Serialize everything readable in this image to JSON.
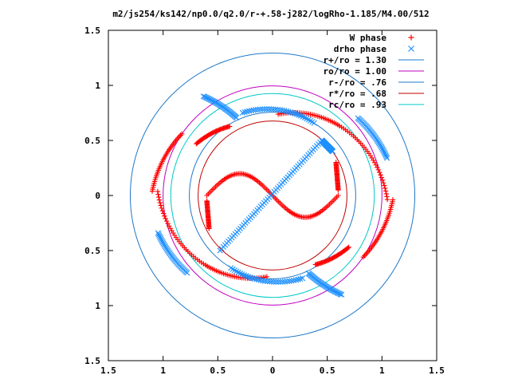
{
  "chart_data": {
    "type": "scatter",
    "title": "m2/js254/ks142/np0.0/q2.0/r-+.58-j282/logRho-1.185/M4.00/512",
    "xlabel": "",
    "ylabel": "",
    "xlim": [
      -1.5,
      1.5
    ],
    "ylim": [
      -1.5,
      1.5
    ],
    "x_ticks": [
      -1.5,
      -1,
      -0.5,
      0,
      0.5,
      1,
      1.5
    ],
    "x_tick_labels": [
      "1.5",
      "1",
      "0.5",
      "0",
      "0.5",
      "1",
      "1.5"
    ],
    "y_ticks": [
      1.5,
      1,
      0.5,
      0,
      -0.5,
      -1,
      -1.5
    ],
    "y_tick_labels": [
      "1.5",
      "1",
      "0.5",
      "0",
      "0.5",
      "1",
      "1.5"
    ],
    "grid": false,
    "legend_position": "top-right",
    "series": [
      {
        "name": "W phase",
        "kind": "points",
        "marker": "plus",
        "color": "#ff0000",
        "arcs": [
          {
            "r0": 0.74,
            "r1": 0.84,
            "a0": 122,
            "a1": 146
          },
          {
            "r0": 1.0,
            "r1": 1.1,
            "a0": 146,
            "a1": 178
          },
          {
            "r0": 1.05,
            "r1": 0.88,
            "a0": 178,
            "a1": 226
          },
          {
            "r0": 0.88,
            "r1": 0.74,
            "a0": 226,
            "a1": 266
          },
          {
            "r0": 0.74,
            "r1": 0.84,
            "a0": 302,
            "a1": 326
          },
          {
            "r0": 1.0,
            "r1": 1.1,
            "a0": 326,
            "a1": 358
          },
          {
            "r0": 1.05,
            "r1": 0.88,
            "a0": 358,
            "a1": 406
          },
          {
            "r0": 0.88,
            "r1": 0.74,
            "a0": 406,
            "a1": 446
          }
        ],
        "curves": [
          {
            "param": "s-curve",
            "t0": -0.6,
            "t1": 0.6
          }
        ]
      },
      {
        "name": "drho phase",
        "kind": "points",
        "marker": "cross",
        "color": "#1e90ff",
        "lines": [
          {
            "x0": -0.48,
            "y0": -0.5,
            "x1": 0.45,
            "y1": 0.5
          },
          {
            "x0": 0.45,
            "y0": 0.5,
            "x1": 0.55,
            "y1": 0.4
          }
        ],
        "arcs": [
          {
            "r0": 0.76,
            "r1": 0.8,
            "a0": 60,
            "a1": 110
          },
          {
            "r0": 0.76,
            "r1": 0.8,
            "a0": 240,
            "a1": 290
          },
          {
            "r0": 1.1,
            "r1": 1.05,
            "a0": 18,
            "a1": 42
          },
          {
            "r0": 1.1,
            "r1": 1.05,
            "a0": 198,
            "a1": 222
          },
          {
            "r0": 0.78,
            "r1": 1.1,
            "a0": 115,
            "a1": 125
          },
          {
            "r0": 0.78,
            "r1": 1.1,
            "a0": 295,
            "a1": 305
          }
        ]
      },
      {
        "name": "r+/ro = 1.30",
        "kind": "circle",
        "radius": 1.3,
        "color": "#1e78c8"
      },
      {
        "name": "ro/ro = 1.00",
        "kind": "circle",
        "radius": 1.0,
        "color": "#c000c0"
      },
      {
        "name": "r-/ro = .76",
        "kind": "circle",
        "radius": 0.76,
        "color": "#1e78c8"
      },
      {
        "name": "r*/ro = .68",
        "kind": "circle",
        "radius": 0.68,
        "color": "#c00000"
      },
      {
        "name": "rc/ro = .93",
        "kind": "circle",
        "radius": 0.93,
        "color": "#00c8c8"
      }
    ]
  }
}
